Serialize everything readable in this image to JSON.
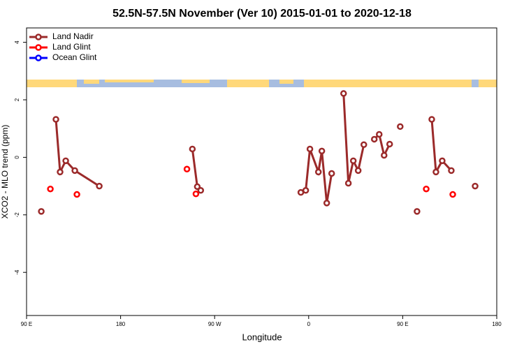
{
  "chart_data": {
    "type": "line",
    "title": "52.5N-57.5N November (Ver 10)   2015-01-01 to 2020-12-18",
    "xlabel": "Longitude",
    "ylabel": "XCO2 - MLO trend (ppm)",
    "xlim": [
      90,
      540
    ],
    "ylim": [
      -5.5,
      4.5
    ],
    "xticks": [
      {
        "value": 90,
        "label": "90 E"
      },
      180,
      {
        "value": 270,
        "label": "90 W"
      },
      {
        "value": 360,
        "label": "0"
      },
      {
        "value": 450,
        "label": "90 E"
      },
      {
        "value": 540,
        "label": "180"
      }
    ],
    "yticks": [
      -4,
      -2,
      0,
      2,
      4
    ],
    "legend": "top-left",
    "series": [
      {
        "name": "Land Nadir",
        "color": "#9b2a2a",
        "x": [
          104.1,
          null,
          118.1,
          122.1,
          127.5,
          136.2,
          159.6,
          null,
          248.7,
          253.4,
          256.7,
          null,
          352.5,
          357.2,
          361.2,
          369.3,
          372.6,
          377.3,
          382.0,
          null,
          393.4,
          398.0,
          402.7,
          407.4,
          412.8,
          null,
          422.8,
          427.5,
          432.2,
          437.5,
          null,
          447.6,
          null,
          463.7,
          null,
          477.8,
          481.8,
          487.8,
          496.5,
          null,
          519.3
        ],
        "values": [
          -1.88,
          null,
          1.32,
          -0.51,
          -0.12,
          -0.46,
          -1.0,
          null,
          0.29,
          -1.02,
          -1.15,
          null,
          -1.22,
          -1.15,
          0.29,
          -0.51,
          0.22,
          -1.59,
          -0.56,
          null,
          2.22,
          -0.9,
          -0.12,
          -0.46,
          0.44,
          null,
          0.63,
          0.8,
          0.07,
          0.46,
          null,
          1.07,
          null,
          -1.88,
          null,
          1.32,
          -0.51,
          -0.12,
          -0.46,
          null,
          -1.0
        ]
      },
      {
        "name": "Land Glint",
        "color": "#ff0000",
        "x": [
          112.8,
          null,
          138.2,
          null,
          243.5,
          null,
          252.1,
          null,
          472.5,
          null,
          497.9
        ],
        "values": [
          -1.1,
          null,
          -1.29,
          null,
          -0.41,
          null,
          -1.27,
          null,
          -1.1,
          null,
          -1.29
        ]
      },
      {
        "name": "Ocean Glint",
        "color": "#0000ff",
        "x": [],
        "values": []
      }
    ]
  }
}
